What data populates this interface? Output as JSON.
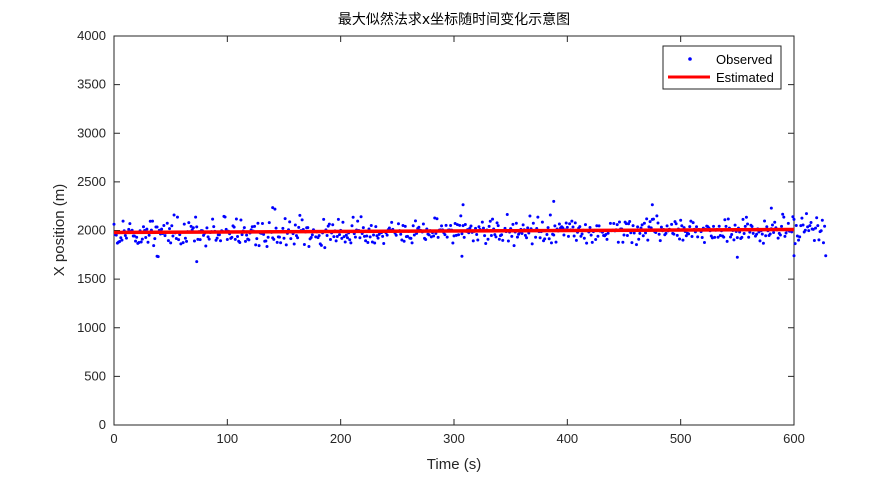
{
  "chart_data": {
    "type": "scatter",
    "title": "最大似然法求x坐标随时间变化示意图",
    "xlabel": "Time (s)",
    "ylabel": "X position (m)",
    "xlim": [
      0,
      600
    ],
    "ylim": [
      0,
      4000
    ],
    "xticks": [
      0,
      100,
      200,
      300,
      400,
      500,
      600
    ],
    "yticks": [
      0,
      500,
      1000,
      1500,
      2000,
      2500,
      3000,
      3500,
      4000
    ],
    "grid": false,
    "legend_position": "top-right",
    "series": [
      {
        "name": "Observed",
        "marker": "dot",
        "color": "#0000ff",
        "sample_interval_s": 1,
        "x_start": 0,
        "y": [
          2064,
          1959,
          1953,
          1870,
          1880,
          1887,
          1925,
          1901,
          2097,
          1997,
          1949,
          1921,
          1983,
          2011,
          2071,
          1991,
          2003,
          1943,
          1944,
          1891,
          1930,
          1867,
          1876,
          1997,
          1882,
          1911,
          2039,
          2000,
          1928,
          2014,
          1879,
          1951,
          2095,
          2004,
          2096,
          1844,
          1916,
          2036,
          2036,
          1731,
          2003,
          1964,
          2014,
          1969,
          2052,
          1947,
          1977,
          2075,
          1896,
          2019,
          1873,
          2049,
          1943,
          2160,
          1976,
          1918,
          2137,
          1906,
          1957,
          1862,
          1983,
          1875,
          2066,
          1920,
          1888,
          1988,
          2081,
          1987,
          2043,
          2008,
          2028,
          1892,
          2137,
          2037,
          1909,
          1989,
          1906,
          1999,
          1997,
          1950,
          1972,
          1841,
          2027,
          1934,
          1911,
          1980,
          1988,
          2117,
          2040,
          1991,
          1900,
          1921,
          1956,
          1956,
          1894,
          1998,
          1989,
          2145,
          2139,
          2012,
          1908,
          1992,
          1966,
          1919,
          1929,
          2048,
          2035,
          1909,
          2118,
          1938,
          1889,
          1876,
          2108,
          1958,
          1995,
          2030,
          1888,
          1953,
          1911,
          1904,
          1974,
          2006,
          2038,
          1993,
          2042,
          1852,
          1917,
          2075,
          1845,
          1975,
          1970,
          2072,
          1960,
          1890,
          1892,
          1836,
          1930,
          2081,
          1988,
          1981,
          1924,
          1909,
          2220,
          2025,
          1878,
          1935,
          1932,
          1874,
          1989,
          2022,
          1920,
          2122,
          1852,
          1970,
          2008,
          2089,
          1916,
          1986,
          1968,
          1861,
          2057,
          1947,
          1926,
          2032,
          2156,
          1999,
          2109,
          2010,
          1856,
          1984,
          2028,
          2029,
          1836,
          1914,
          1928,
          1955,
          2008,
          1992,
          1935,
          1986,
          1927,
          1947,
          1862,
          1847,
          1976,
          2115,
          1824,
          2007,
          1948,
          2045,
          2066,
          1908,
          1976,
          2059,
          1937,
          1996,
          1893,
          1938,
          2114,
          1957,
          2001,
          1919,
          2085,
          1937,
          1882,
          1953,
          1926,
          1976,
          1905,
          1873,
          2049,
          2136,
          1968,
          1932,
          2005,
          2097,
          2000,
          1925,
          2142,
          1969,
          2030,
          1939,
          1894,
          1943,
          1877,
          2015,
          1934,
          2052,
          1882,
          1954,
          1871,
          2040,
          1946,
          1921,
          1960,
          1986,
          1978,
          1940,
          1866,
          1988,
          1977,
          1953,
          2009,
          2026,
          2001,
          2083,
          2011,
          1994,
          1973,
          1951,
          1993,
          2069,
          1999,
          1961,
          1902,
          2051,
          1889,
          2043,
          1937,
          1940,
          1991,
          1921,
          1919,
          1873,
          2049,
          1954,
          2099,
          1970,
          2020,
          2034,
          2002,
          1999,
          1984,
          2067,
          1919,
          1908,
          2016,
          1963,
          1955,
          1999,
          1934,
          1978,
          1944,
          2128,
          1970,
          2121,
          1929,
          2004,
          2007,
          2048,
          2007,
          1977,
          1958,
          2053,
          1932,
          2005,
          2007,
          2051,
          2004,
          1871,
          1945,
          2072,
          1950,
          2061,
          1956,
          2053,
          2150,
          1966,
          2050,
          1929,
          2062,
          1991,
          2009,
          1977,
          2024,
          2046,
          1981,
          1893,
          1991,
          2022,
          1959,
          1902,
          2039,
          2010,
          1996,
          2086,
          2025,
          1947,
          1866,
          2005,
          1910,
          2042,
          2095,
          1949,
          2117,
          2015,
          1957,
          1934,
          2078,
          2050,
          1910,
          1947,
          1956,
          1899,
          1995,
          2022,
          1989,
          2165,
          1892,
          1983,
          2019,
          1939,
          2063,
          1844,
          1984,
          2074,
          1932,
          1962,
          1982,
          2011,
          1969,
          2058,
          2008,
          1950,
          1926,
          2027,
          1974,
          2149,
          2018,
          1862,
          2074,
          2001,
          1931,
          2020,
          2138,
          1988,
          1925,
          1988,
          2086,
          1894,
          1914,
          1999,
          1959,
          2030,
          1915,
          2159,
          1873,
          1961,
          1954,
          2047,
          1881,
          2015,
          1995,
          2067,
          2026,
          2038,
          2027,
          1954,
          2008,
          2077,
          2032,
          1940,
          2069,
          2007,
          2096,
          2036,
          1944,
          2078,
          1898,
          1982,
          2023,
          2040,
          1941,
          1964,
          2003,
          1920,
          2061,
          1870,
          1996,
          1984,
          2031,
          1953,
          1878,
          1989,
          2001,
          1907,
          2049,
          1941,
          2048,
          1993,
          2000,
          1982,
          1948,
          1946,
          1959,
          1909,
          1972,
          2000,
          2073,
          1999,
          2004,
          2072,
          1996,
          2008,
          2061,
          1879,
          2087,
          2016,
          2015,
          1879,
          1954,
          2086,
          2071,
          1948,
          2069,
          2093,
          1977,
          1875,
          2050,
          1974,
          2000,
          1855,
          2037,
          1910,
          1971,
          2026,
          2058,
          1946,
          2075,
          1975,
          2119,
          1901,
          2037,
          2091,
          2027,
          2115,
          2117,
          1990,
          1979,
          2151,
          2077,
          1962,
          1896,
          2035,
          1997,
          2010,
          1956,
          1970,
          2048,
          1996,
          2013,
          2005,
          2063,
          1971,
          1963,
          2091,
          2069,
          1950,
          2016,
          1912,
          2105,
          2049,
          1901,
          2030,
          1990,
          1946,
          1972,
          1965,
          2040,
          2096,
          1938,
          2081,
          2011,
          1986,
          2038,
          1934,
          2010,
          2006,
          1989,
          1928,
          2025,
          1877,
          2012,
          2045,
          2039,
          2024,
          1998,
          1944,
          1924,
          2042,
          1929,
          2002,
          2011,
          1931,
          2044,
          1949,
          1998,
          1943,
          1932,
          2110,
          2042,
          1888,
          2118,
          2024,
          1933,
          1959,
          2000,
          1904,
          2055,
          1990,
          1927,
          2025,
          1984,
          1918,
          1929,
          2114,
          1969,
          2042,
          2136,
          2067,
          1931,
          1983,
          2054,
          2041,
          1971,
          2005,
          1942,
          1962,
          2017,
          1984,
          1893,
          1997,
          1963,
          1869,
          2098,
          1946,
          2039,
          1997,
          1948,
          1964,
          2018,
          2056,
          1980,
          2085,
          2028,
          2006,
          1922,
          1970,
          1954,
          2042,
          2167,
          2137,
          1940,
          1974,
          2003,
          2073,
          1992,
          1997,
          1986,
          2142,
          2115,
          1865,
          2052,
          1944,
          1901,
          1935,
          2050,
          2127,
          2057,
          1985,
          2003,
          2173,
          2037,
          1999,
          2050,
          2082,
          2016,
          2011,
          1897,
          2025,
          2131,
          2050,
          1904,
          1988,
          1997,
          2105,
          1874,
          2044,
          1741
        ],
        "outliers": [
          {
            "x": 38,
            "y": 1735
          },
          {
            "x": 73,
            "y": 1680
          },
          {
            "x": 140,
            "y": 2235
          },
          {
            "x": 307,
            "y": 1735
          },
          {
            "x": 308,
            "y": 2265
          },
          {
            "x": 388,
            "y": 2300
          },
          {
            "x": 475,
            "y": 2265
          },
          {
            "x": 550,
            "y": 1725
          },
          {
            "x": 580,
            "y": 2230
          },
          {
            "x": 600,
            "y": 1740
          }
        ]
      },
      {
        "name": "Estimated",
        "marker": "line",
        "color": "#ff0000",
        "x": [
          0,
          600
        ],
        "y": [
          1980,
          2010
        ]
      }
    ]
  }
}
